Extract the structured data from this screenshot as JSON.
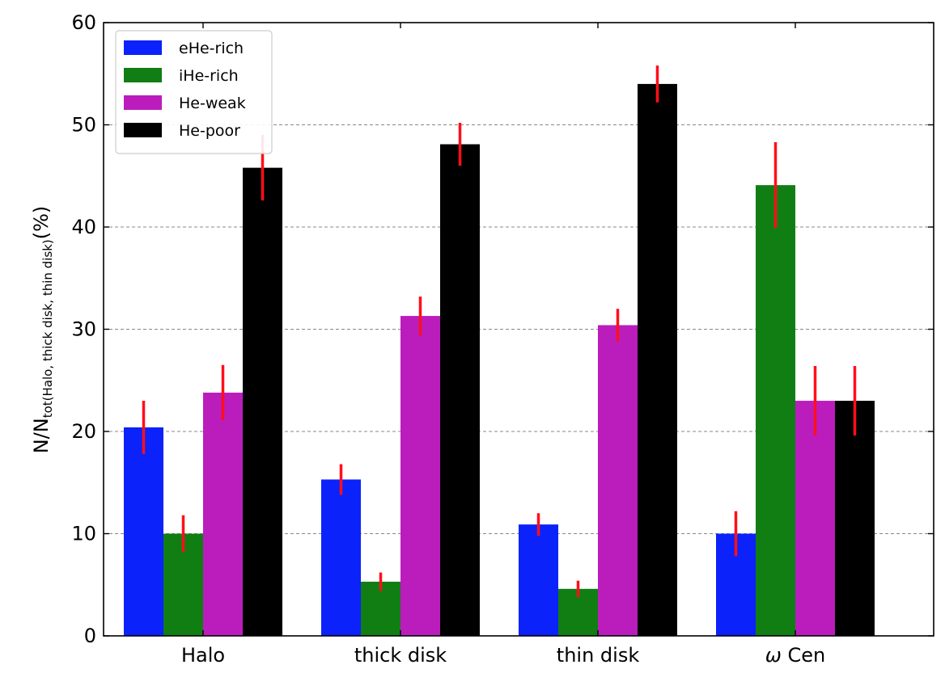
{
  "chart_data": {
    "type": "bar",
    "categories": [
      "Halo",
      "thick disk",
      "thin disk",
      "ω Cen"
    ],
    "series": [
      {
        "name": "eHe-rich",
        "color": "#0c22fb",
        "values": [
          20.4,
          15.3,
          10.9,
          10.0
        ],
        "errors": [
          2.6,
          1.5,
          1.1,
          2.2
        ]
      },
      {
        "name": "iHe-rich",
        "color": "#117e14",
        "values": [
          10.0,
          5.3,
          4.6,
          44.1
        ],
        "errors": [
          1.8,
          0.9,
          0.8,
          4.2
        ]
      },
      {
        "name": "He-weak",
        "color": "#bb1dbd",
        "values": [
          23.8,
          31.3,
          30.4,
          23.0
        ],
        "errors": [
          2.7,
          1.9,
          1.6,
          3.4
        ]
      },
      {
        "name": "He-poor",
        "color": "#000000",
        "values": [
          45.8,
          48.1,
          54.0,
          23.0
        ],
        "errors": [
          3.2,
          2.1,
          1.8,
          3.4
        ]
      }
    ],
    "error_bar_color": "#ff0f1a",
    "ylabel": {
      "main": "N/N",
      "subscript": "tot(Halo, thick disk, thin disk)",
      "unit": "(%)"
    },
    "xlabel": "",
    "ylim": [
      0,
      60
    ],
    "yticks": [
      "0",
      "10",
      "20",
      "30",
      "40",
      "50",
      "60"
    ],
    "grid": "horizontal dashed",
    "legend_position": "top-left"
  }
}
